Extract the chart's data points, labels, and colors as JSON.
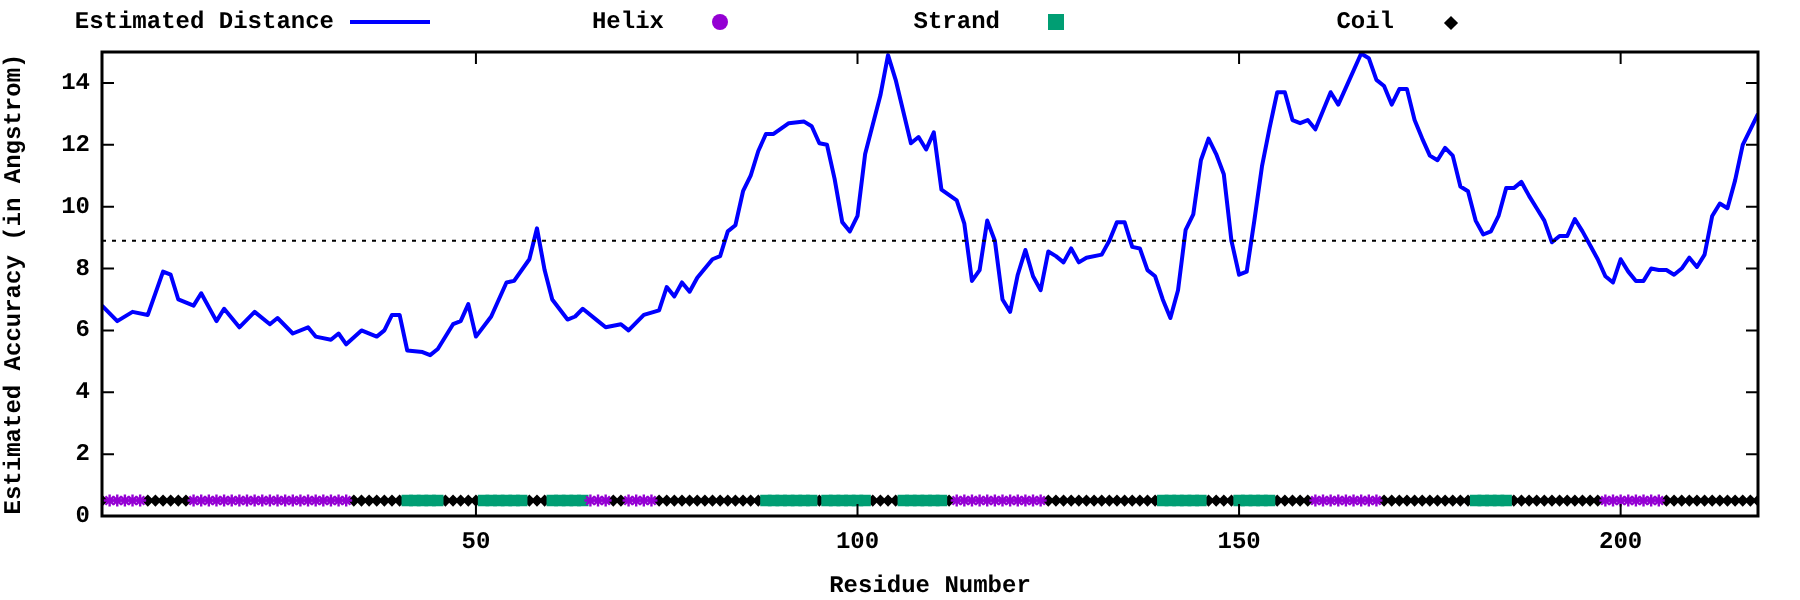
{
  "chart_data": {
    "type": "line",
    "xlabel": "Residue Number",
    "ylabel": "Estimated Accuracy (in Angstrom)",
    "xlim": [
      1,
      218
    ],
    "xticks": [
      50,
      100,
      150,
      200
    ],
    "ylim": [
      0,
      15
    ],
    "yticks": [
      0,
      2,
      4,
      6,
      8,
      10,
      12,
      14
    ],
    "legend": "top",
    "ref_lines": [
      {
        "axis": "y",
        "value": 8.9,
        "color": "#000000",
        "line_style": "dotted"
      }
    ],
    "series": [
      {
        "name": "Estimated Distance",
        "color": "#0000ff",
        "marker": "none",
        "line_style": "solid",
        "x": [
          1,
          3,
          5,
          7,
          9,
          10,
          11,
          13,
          14,
          16,
          17,
          19,
          21,
          23,
          24,
          26,
          28,
          29,
          31,
          32,
          33,
          35,
          37,
          38,
          39,
          40,
          41,
          43,
          44,
          45,
          47,
          48,
          49,
          50,
          52,
          54,
          55,
          57,
          58,
          59,
          60,
          62,
          63,
          64,
          66,
          67,
          69,
          70,
          72,
          74,
          75,
          76,
          77,
          78,
          79,
          81,
          82,
          83,
          84,
          85,
          86,
          87,
          88,
          89,
          91,
          93,
          94,
          95,
          96,
          97,
          98,
          99,
          100,
          101,
          103,
          104,
          105,
          107,
          108,
          109,
          110,
          111,
          113,
          114,
          115,
          116,
          117,
          118,
          119,
          120,
          121,
          122,
          123,
          124,
          125,
          126,
          127,
          128,
          129,
          130,
          132,
          133,
          134,
          135,
          136,
          137,
          138,
          139,
          140,
          141,
          142,
          143,
          144,
          145,
          146,
          147,
          148,
          149,
          150,
          151,
          152,
          153,
          154,
          155,
          156,
          157,
          158,
          159,
          160,
          161,
          162,
          163,
          164,
          166,
          167,
          168,
          169,
          170,
          171,
          172,
          173,
          174,
          175,
          176,
          177,
          178,
          179,
          180,
          181,
          182,
          183,
          184,
          185,
          186,
          187,
          188,
          189,
          190,
          191,
          192,
          193,
          194,
          195,
          196,
          197,
          198,
          199,
          200,
          201,
          202,
          203,
          204,
          205,
          206,
          207,
          208,
          209,
          210,
          211,
          212,
          213,
          214,
          215,
          216,
          218
        ],
        "values": [
          6.8,
          6.3,
          6.6,
          6.5,
          7.9,
          7.8,
          7.0,
          6.8,
          7.2,
          6.3,
          6.7,
          6.1,
          6.6,
          6.2,
          6.4,
          5.9,
          6.1,
          5.8,
          5.7,
          5.9,
          5.55,
          6.0,
          5.8,
          6.0,
          6.5,
          6.5,
          5.35,
          5.3,
          5.2,
          5.4,
          6.2,
          6.3,
          6.85,
          5.8,
          6.45,
          7.55,
          7.6,
          8.3,
          9.3,
          7.95,
          7.0,
          6.35,
          6.45,
          6.7,
          6.3,
          6.1,
          6.2,
          6.0,
          6.5,
          6.65,
          7.4,
          7.1,
          7.55,
          7.25,
          7.7,
          8.3,
          8.4,
          9.2,
          9.4,
          10.5,
          11.0,
          11.8,
          12.35,
          12.35,
          12.7,
          12.75,
          12.6,
          12.05,
          12.0,
          10.9,
          9.5,
          9.2,
          9.7,
          11.7,
          13.6,
          14.9,
          14.1,
          12.05,
          12.25,
          11.85,
          12.4,
          10.55,
          10.2,
          9.45,
          7.6,
          7.95,
          9.55,
          8.9,
          7.0,
          6.6,
          7.8,
          8.6,
          7.75,
          7.3,
          8.55,
          8.4,
          8.2,
          8.65,
          8.2,
          8.35,
          8.45,
          8.9,
          9.5,
          9.5,
          8.7,
          8.65,
          7.95,
          7.75,
          7.0,
          6.4,
          7.3,
          9.25,
          9.75,
          11.5,
          12.2,
          11.7,
          11.05,
          8.9,
          7.8,
          7.9,
          9.55,
          11.3,
          12.55,
          13.7,
          13.7,
          12.8,
          12.7,
          12.8,
          12.5,
          13.1,
          13.7,
          13.3,
          13.85,
          14.95,
          14.8,
          14.1,
          13.9,
          13.3,
          13.8,
          13.8,
          12.8,
          12.2,
          11.65,
          11.5,
          11.9,
          11.65,
          10.65,
          10.5,
          9.55,
          9.1,
          9.2,
          9.7,
          10.6,
          10.6,
          10.8,
          10.35,
          9.95,
          9.55,
          8.85,
          9.05,
          9.05,
          9.6,
          9.2,
          8.75,
          8.3,
          7.75,
          7.55,
          8.3,
          7.9,
          7.6,
          7.6,
          8.0,
          7.95,
          7.95,
          7.8,
          8.0,
          8.35,
          8.05,
          8.45,
          9.7,
          10.1,
          9.95,
          10.85,
          12.0,
          13.0
        ]
      },
      {
        "name": "Helix",
        "type": "scatter",
        "color": "#9400d3",
        "marker": "cross",
        "x": [
          2,
          3,
          4,
          5,
          6,
          13,
          14,
          15,
          16,
          17,
          18,
          19,
          20,
          21,
          22,
          23,
          24,
          25,
          26,
          27,
          28,
          29,
          30,
          31,
          32,
          33,
          65,
          66,
          67,
          70,
          71,
          72,
          73,
          113,
          114,
          115,
          116,
          117,
          118,
          119,
          120,
          121,
          122,
          123,
          124,
          160,
          161,
          162,
          163,
          164,
          165,
          166,
          167,
          168,
          198,
          199,
          200,
          201,
          202,
          203,
          204,
          205
        ],
        "values": [
          0.5,
          0.5,
          0.5,
          0.5,
          0.5,
          0.5,
          0.5,
          0.5,
          0.5,
          0.5,
          0.5,
          0.5,
          0.5,
          0.5,
          0.5,
          0.5,
          0.5,
          0.5,
          0.5,
          0.5,
          0.5,
          0.5,
          0.5,
          0.5,
          0.5,
          0.5,
          0.5,
          0.5,
          0.5,
          0.5,
          0.5,
          0.5,
          0.5,
          0.5,
          0.5,
          0.5,
          0.5,
          0.5,
          0.5,
          0.5,
          0.5,
          0.5,
          0.5,
          0.5,
          0.5,
          0.5,
          0.5,
          0.5,
          0.5,
          0.5,
          0.5,
          0.5,
          0.5,
          0.5,
          0.5,
          0.5,
          0.5,
          0.5,
          0.5,
          0.5,
          0.5,
          0.5
        ]
      },
      {
        "name": "Strand",
        "type": "scatter",
        "color": "#009e73",
        "marker": "square",
        "x": [
          41,
          42,
          43,
          44,
          45,
          51,
          52,
          53,
          54,
          55,
          56,
          60,
          61,
          62,
          63,
          64,
          88,
          89,
          90,
          91,
          92,
          93,
          94,
          96,
          97,
          98,
          99,
          100,
          101,
          106,
          107,
          108,
          109,
          110,
          111,
          140,
          141,
          142,
          143,
          144,
          145,
          150,
          151,
          152,
          153,
          154,
          181,
          182,
          183,
          184,
          185
        ],
        "values": [
          0.5,
          0.5,
          0.5,
          0.5,
          0.5,
          0.5,
          0.5,
          0.5,
          0.5,
          0.5,
          0.5,
          0.5,
          0.5,
          0.5,
          0.5,
          0.5,
          0.5,
          0.5,
          0.5,
          0.5,
          0.5,
          0.5,
          0.5,
          0.5,
          0.5,
          0.5,
          0.5,
          0.5,
          0.5,
          0.5,
          0.5,
          0.5,
          0.5,
          0.5,
          0.5,
          0.5,
          0.5,
          0.5,
          0.5,
          0.5,
          0.5,
          0.5,
          0.5,
          0.5,
          0.5,
          0.5,
          0.5,
          0.5,
          0.5,
          0.5,
          0.5
        ]
      },
      {
        "name": "Coil",
        "type": "scatter",
        "color": "#000000",
        "marker": "diamond",
        "x": [
          1,
          7,
          8,
          9,
          10,
          11,
          12,
          34,
          35,
          36,
          37,
          38,
          39,
          40,
          46,
          47,
          48,
          49,
          50,
          57,
          58,
          59,
          68,
          69,
          74,
          75,
          76,
          77,
          78,
          79,
          80,
          81,
          82,
          83,
          84,
          85,
          86,
          87,
          95,
          102,
          103,
          104,
          105,
          112,
          125,
          126,
          127,
          128,
          129,
          130,
          131,
          132,
          133,
          134,
          135,
          136,
          137,
          138,
          139,
          146,
          147,
          148,
          149,
          155,
          156,
          157,
          158,
          159,
          169,
          170,
          171,
          172,
          173,
          174,
          175,
          176,
          177,
          178,
          179,
          180,
          186,
          187,
          188,
          189,
          190,
          191,
          192,
          193,
          194,
          195,
          196,
          197,
          206,
          207,
          208,
          209,
          210,
          211,
          212,
          213,
          214,
          215,
          216,
          217,
          218
        ],
        "values": [
          0.5,
          0.5,
          0.5,
          0.5,
          0.5,
          0.5,
          0.5,
          0.5,
          0.5,
          0.5,
          0.5,
          0.5,
          0.5,
          0.5,
          0.5,
          0.5,
          0.5,
          0.5,
          0.5,
          0.5,
          0.5,
          0.5,
          0.5,
          0.5,
          0.5,
          0.5,
          0.5,
          0.5,
          0.5,
          0.5,
          0.5,
          0.5,
          0.5,
          0.5,
          0.5,
          0.5,
          0.5,
          0.5,
          0.5,
          0.5,
          0.5,
          0.5,
          0.5,
          0.5,
          0.5,
          0.5,
          0.5,
          0.5,
          0.5,
          0.5,
          0.5,
          0.5,
          0.5,
          0.5,
          0.5,
          0.5,
          0.5,
          0.5,
          0.5,
          0.5,
          0.5,
          0.5,
          0.5,
          0.5,
          0.5,
          0.5,
          0.5,
          0.5,
          0.5,
          0.5,
          0.5,
          0.5,
          0.5,
          0.5,
          0.5,
          0.5,
          0.5,
          0.5,
          0.5,
          0.5,
          0.5,
          0.5,
          0.5,
          0.5,
          0.5,
          0.5,
          0.5,
          0.5,
          0.5,
          0.5,
          0.5,
          0.5,
          0.5,
          0.5,
          0.5,
          0.5,
          0.5,
          0.5,
          0.5,
          0.5,
          0.5,
          0.5,
          0.5,
          0.5,
          0.5
        ]
      }
    ]
  }
}
